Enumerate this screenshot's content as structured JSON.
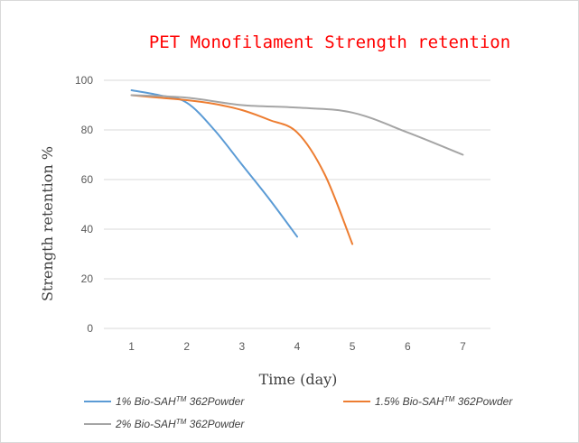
{
  "chart_data": {
    "type": "line",
    "title": "PET Monofilament Strength retention",
    "xlabel": "Time (day)",
    "ylabel": "Strength retention %",
    "categories": [
      "1",
      "2",
      "3",
      "4",
      "5",
      "6",
      "7"
    ],
    "x": [
      1,
      2,
      3,
      4,
      5,
      6,
      7
    ],
    "ylim": [
      0,
      100
    ],
    "yticks": [
      0,
      20,
      40,
      60,
      80,
      100
    ],
    "grid": true,
    "legend_position": "bottom",
    "series": [
      {
        "name": "1% Bio-SAH™ 362Powder",
        "name_prefix": "1% Bio-SAH",
        "name_tm": "TM",
        "name_suffix": " 362Powder",
        "color": "#5b9bd5",
        "x": [
          1,
          1.5,
          2,
          2.5,
          3,
          3.5,
          4
        ],
        "values": [
          96,
          94,
          91,
          80,
          66,
          52,
          37
        ]
      },
      {
        "name": "1.5% Bio-SAH™ 362Powder",
        "name_prefix": "1.5% Bio-SAH",
        "name_tm": "TM",
        "name_suffix": " 362Powder",
        "color": "#ed7d31",
        "x": [
          1,
          1.5,
          2,
          2.5,
          3,
          3.5,
          4,
          4.5,
          5
        ],
        "values": [
          94,
          93,
          92,
          90.5,
          88,
          84,
          79,
          62,
          34
        ]
      },
      {
        "name": "2% Bio-SAH™ 362Powder",
        "name_prefix": "2% Bio-SAH",
        "name_tm": "TM",
        "name_suffix": " 362Powder",
        "color": "#a5a5a5",
        "x": [
          1,
          2,
          3,
          4,
          5,
          6,
          7
        ],
        "values": [
          94,
          93,
          90,
          89,
          87,
          79,
          70
        ]
      }
    ]
  }
}
